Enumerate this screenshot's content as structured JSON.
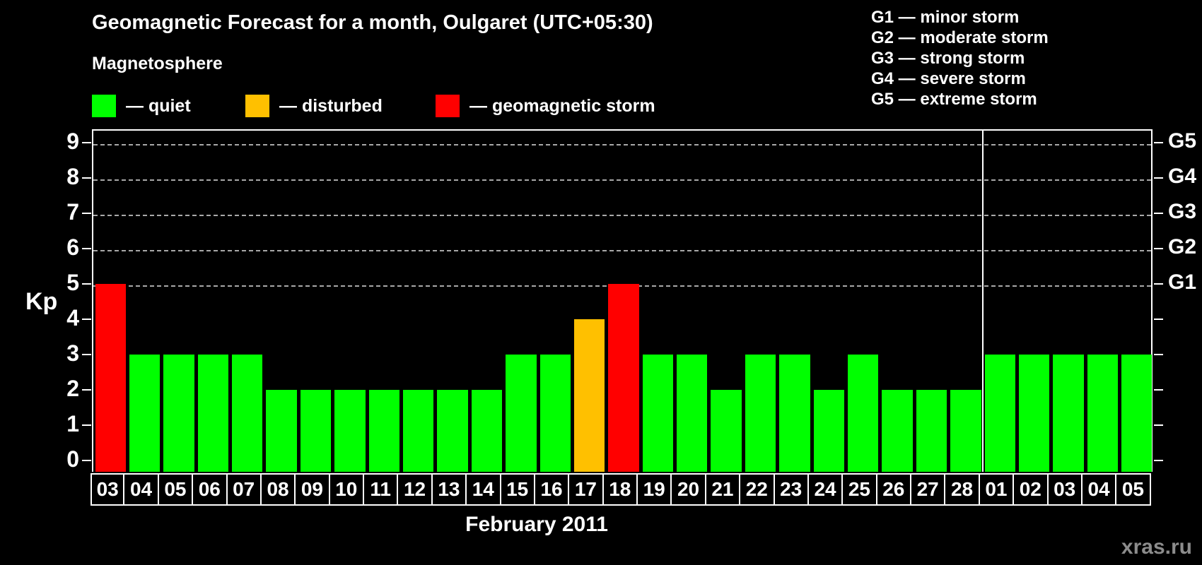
{
  "title": "Geomagnetic Forecast for a month, Oulgaret (UTC+05:30)",
  "legend": {
    "heading": "Magnetosphere",
    "items": [
      {
        "name": "quiet",
        "label": "— quiet",
        "color": "#00ff00"
      },
      {
        "name": "disturbed",
        "label": "— disturbed",
        "color": "#ffc000"
      },
      {
        "name": "geomagnetic-storm",
        "label": "— geomagnetic storm",
        "color": "#ff0000"
      }
    ]
  },
  "storm_scale_legend": [
    "G1 — minor storm",
    "G2 — moderate storm",
    "G3 — strong storm",
    "G4 — severe storm",
    "G5 — extreme storm"
  ],
  "axis": {
    "ylabel": "Kp",
    "yticks": [
      0,
      1,
      2,
      3,
      4,
      5,
      6,
      7,
      8,
      9
    ],
    "grid_levels": [
      5,
      6,
      7,
      8,
      9
    ],
    "right_axis_labels": {
      "5": "G1",
      "6": "G2",
      "7": "G3",
      "8": "G4",
      "9": "G5"
    }
  },
  "month_label": "February 2011",
  "watermark": "xras.ru",
  "chart_data": {
    "type": "bar",
    "title": "Geomagnetic Forecast for a month, Oulgaret (UTC+05:30)",
    "xlabel": "February 2011",
    "ylabel": "Kp",
    "ylim": [
      0,
      9.4
    ],
    "yticks": [
      0,
      1,
      2,
      3,
      4,
      5,
      6,
      7,
      8,
      9
    ],
    "grid": "dashed horizontal at Kp 5-9 (G1-G5)",
    "legend_position": "top",
    "categories": [
      "03",
      "04",
      "05",
      "06",
      "07",
      "08",
      "09",
      "10",
      "11",
      "12",
      "13",
      "14",
      "15",
      "16",
      "17",
      "18",
      "19",
      "20",
      "21",
      "22",
      "23",
      "24",
      "25",
      "26",
      "27",
      "28",
      "01",
      "02",
      "03",
      "04",
      "05"
    ],
    "values": [
      5,
      3,
      3,
      3,
      3,
      2,
      2,
      2,
      2,
      2,
      2,
      2,
      3,
      3,
      4,
      5,
      3,
      3,
      2,
      3,
      3,
      2,
      3,
      2,
      2,
      2,
      3,
      3,
      3,
      3,
      3
    ],
    "statuses": [
      "geomagnetic-storm",
      "quiet",
      "quiet",
      "quiet",
      "quiet",
      "quiet",
      "quiet",
      "quiet",
      "quiet",
      "quiet",
      "quiet",
      "quiet",
      "quiet",
      "quiet",
      "disturbed",
      "geomagnetic-storm",
      "quiet",
      "quiet",
      "quiet",
      "quiet",
      "quiet",
      "quiet",
      "quiet",
      "quiet",
      "quiet",
      "quiet",
      "quiet",
      "quiet",
      "quiet",
      "quiet",
      "quiet"
    ],
    "status_colors": {
      "quiet": "#00ff00",
      "disturbed": "#ffc000",
      "geomagnetic-storm": "#ff0000"
    },
    "month_separator_after_index": 25,
    "right_axis_labels": {
      "5": "G1",
      "6": "G2",
      "7": "G3",
      "8": "G4",
      "9": "G5"
    }
  }
}
